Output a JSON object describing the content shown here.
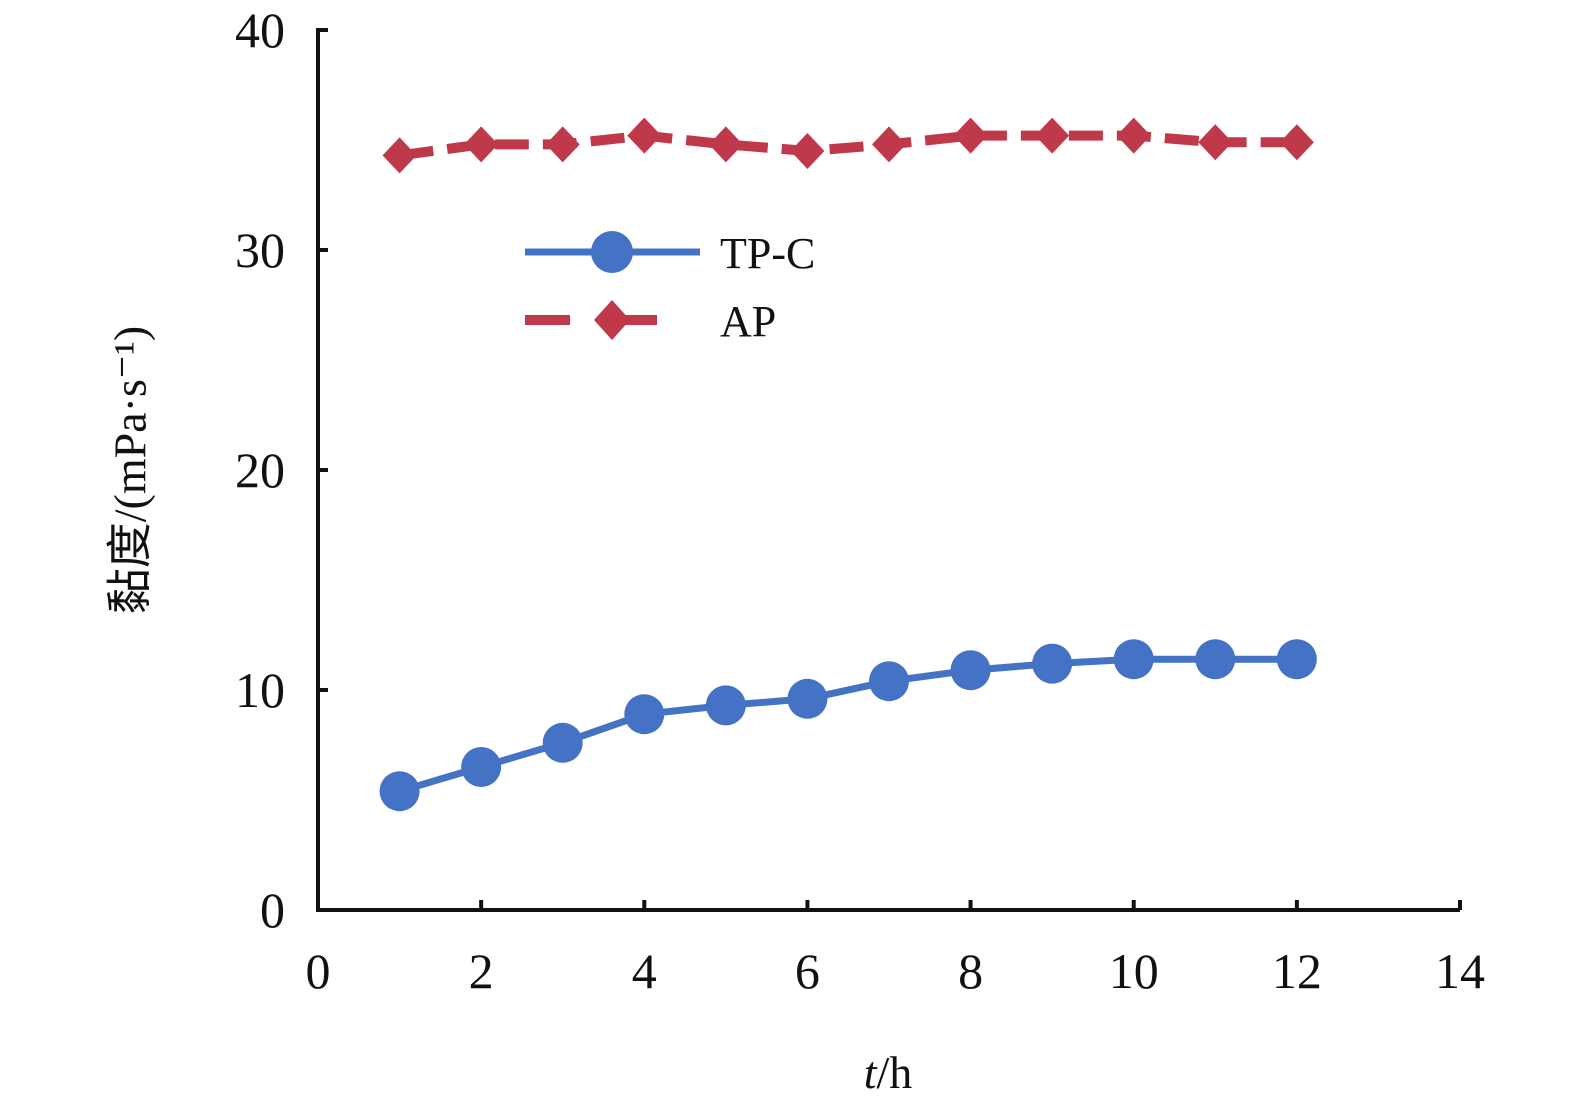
{
  "chart_data": {
    "type": "line",
    "x": [
      1,
      2,
      3,
      4,
      5,
      6,
      7,
      8,
      9,
      10,
      11,
      12
    ],
    "xlabel": "t/h",
    "ylabel": "黏度/(mPa·s⁻¹)",
    "xlim": [
      0,
      14
    ],
    "ylim": [
      0,
      40
    ],
    "xticks": [
      0,
      2,
      4,
      6,
      8,
      10,
      12,
      14
    ],
    "yticks": [
      0,
      10,
      20,
      30,
      40
    ],
    "grid": false,
    "legend": "top-left",
    "series": [
      {
        "name": "TP-C",
        "values": [
          5.4,
          6.5,
          7.6,
          8.9,
          9.3,
          9.6,
          10.4,
          10.9,
          11.2,
          11.4,
          11.4,
          11.4
        ],
        "color": "#4472C4",
        "marker": "circle",
        "line": "solid"
      },
      {
        "name": "AP",
        "values": [
          34.3,
          34.8,
          34.8,
          35.2,
          34.8,
          34.5,
          34.8,
          35.2,
          35.2,
          35.2,
          34.9,
          34.9
        ],
        "color": "#C0394B",
        "marker": "diamond",
        "line": "dashed"
      }
    ]
  }
}
